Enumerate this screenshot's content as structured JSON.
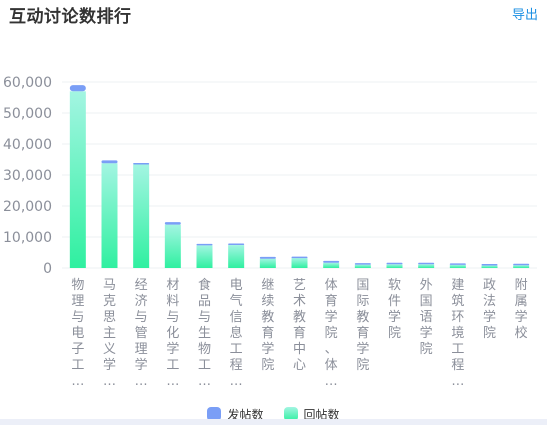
{
  "header": {
    "title": "互动讨论数排行",
    "export_label": "导出"
  },
  "colors": {
    "series_post": "#7a9ef6",
    "series_reply_top": "#a3f5e2",
    "series_reply_bottom": "#2ff0a0",
    "axis_text": "#8b8f9a",
    "grid": "#eef0f3",
    "export_link": "#1a8fe3"
  },
  "chart_data": {
    "type": "bar",
    "stacked": true,
    "title": "",
    "xlabel": "",
    "ylabel": "",
    "ylim": [
      0,
      60000
    ],
    "yticks": [
      0,
      10000,
      20000,
      30000,
      40000,
      50000,
      60000
    ],
    "ytick_labels": [
      "0",
      "10,000",
      "20,000",
      "30,000",
      "40,000",
      "50,000",
      "60,000"
    ],
    "grid": true,
    "legend_position": "bottom-center",
    "categories": [
      "物理与电子工…",
      "马克思主义学…",
      "经济与管理学…",
      "材料与化学工…",
      "食品与生物工…",
      "电气信息工程…",
      "继续教育学院",
      "艺术教育中心",
      "体育学院、体…",
      "国际教育学院",
      "软件学院",
      "外国语学院",
      "建筑环境工程…",
      "政法学院",
      "附属学校"
    ],
    "series": [
      {
        "name": "回帖数",
        "values": [
          57000,
          33800,
          33400,
          14000,
          7300,
          7400,
          3000,
          3200,
          1700,
          1100,
          1200,
          1200,
          1000,
          800,
          900
        ]
      },
      {
        "name": "发帖数",
        "values": [
          2000,
          900,
          300,
          800,
          500,
          300,
          600,
          400,
          600,
          200,
          200,
          200,
          200,
          100,
          100
        ]
      }
    ]
  }
}
